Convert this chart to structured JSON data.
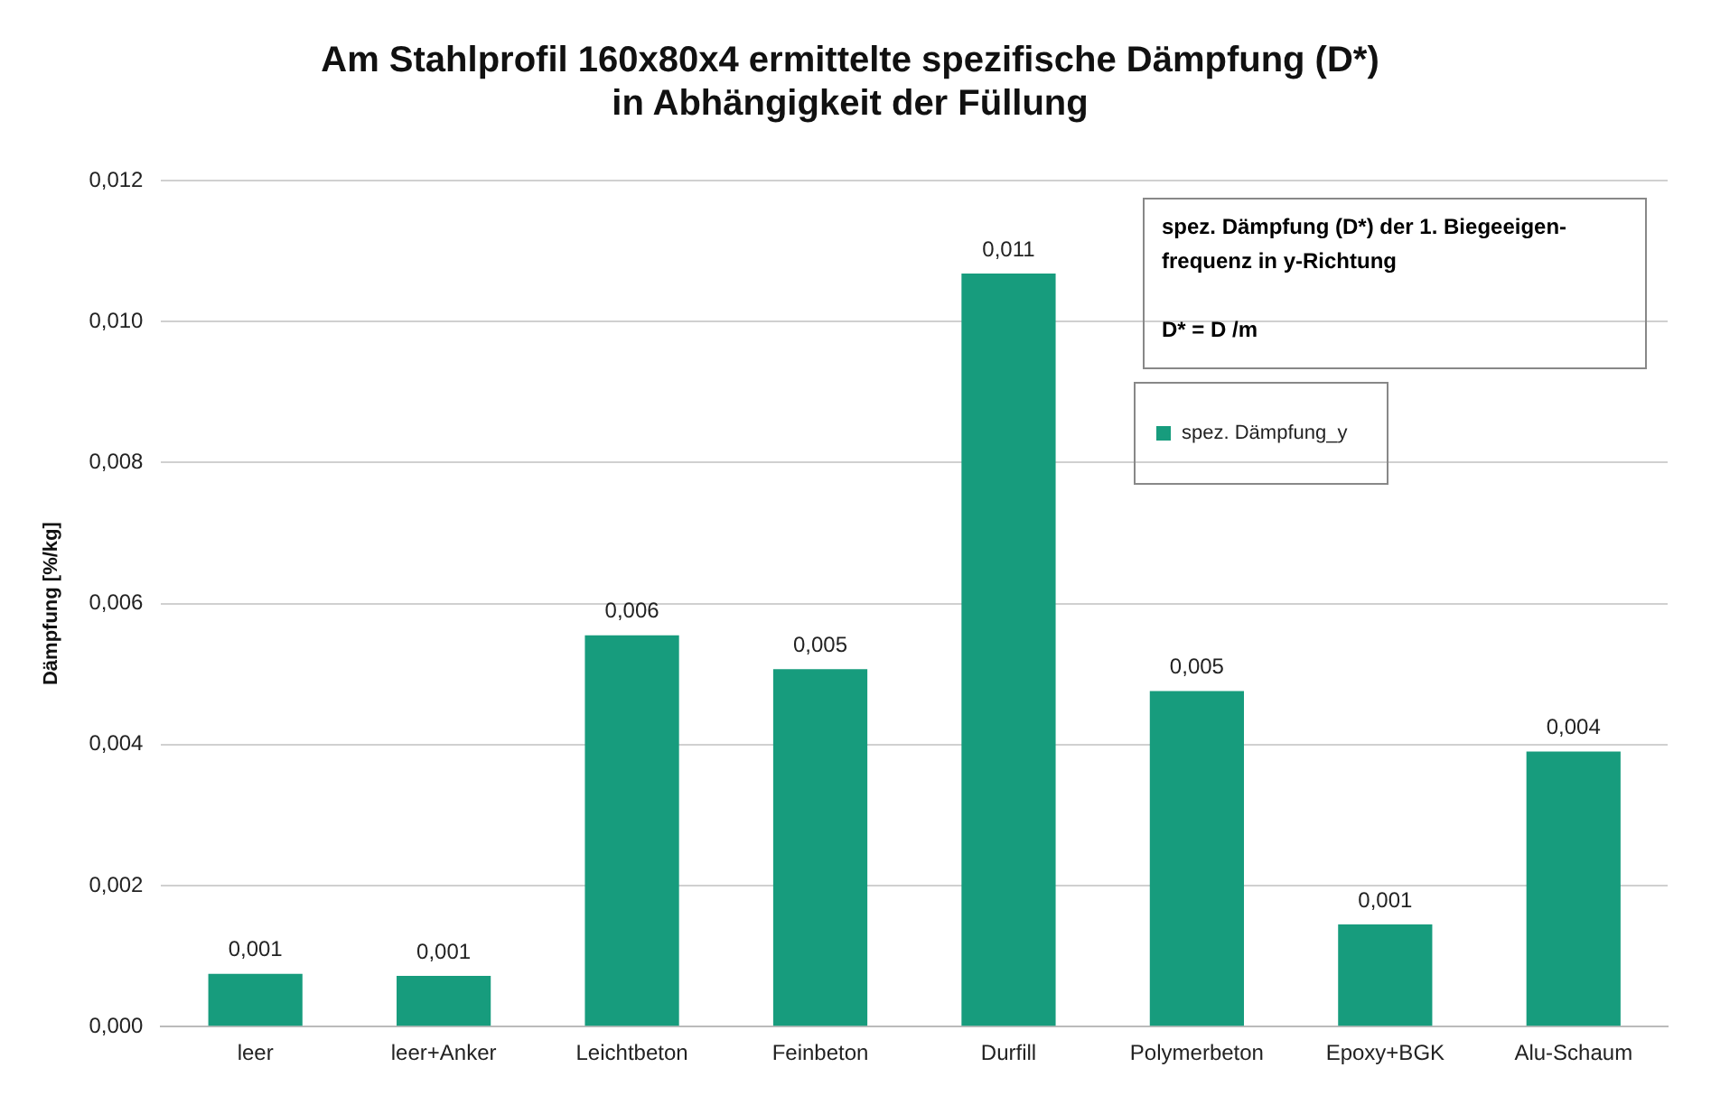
{
  "chart_data": {
    "type": "bar",
    "title": "Am Stahlprofil 160x80x4 ermittelte spezifische Dämpfung (D*)\nin Abhängigkeit der Füllung",
    "ylabel": "Dämpfung [%/kg]",
    "categories": [
      "leer",
      "leer+Anker",
      "Leichtbeton",
      "Feinbeton",
      "Durfill",
      "Polymerbeton",
      "Epoxy+BGK",
      "Alu-Schaum"
    ],
    "series": [
      {
        "name": "spez. Dämpfung_y",
        "color": "#179c7d",
        "values": [
          0.00075,
          0.00072,
          0.00555,
          0.00507,
          0.01068,
          0.00476,
          0.00145,
          0.0039
        ],
        "value_labels": [
          "0,001",
          "0,001",
          "0,006",
          "0,005",
          "0,011",
          "0,005",
          "0,001",
          "0,004"
        ]
      }
    ],
    "ylim": [
      0,
      0.012
    ],
    "yticks": [
      {
        "value": 0,
        "label": "0,000"
      },
      {
        "value": 0.002,
        "label": "0,002"
      },
      {
        "value": 0.004,
        "label": "0,004"
      },
      {
        "value": 0.006,
        "label": "0,006"
      },
      {
        "value": 0.008,
        "label": "0,008"
      },
      {
        "value": 0.01,
        "label": "0,010"
      },
      {
        "value": 0.012,
        "label": "0,012"
      }
    ],
    "annotations": [
      "spez. Dämpfung (D*) der 1. Biegeeigen-\nfrequenz in y-Richtung\n\nD* = D /m"
    ],
    "grid": "y",
    "legend": "top right"
  }
}
